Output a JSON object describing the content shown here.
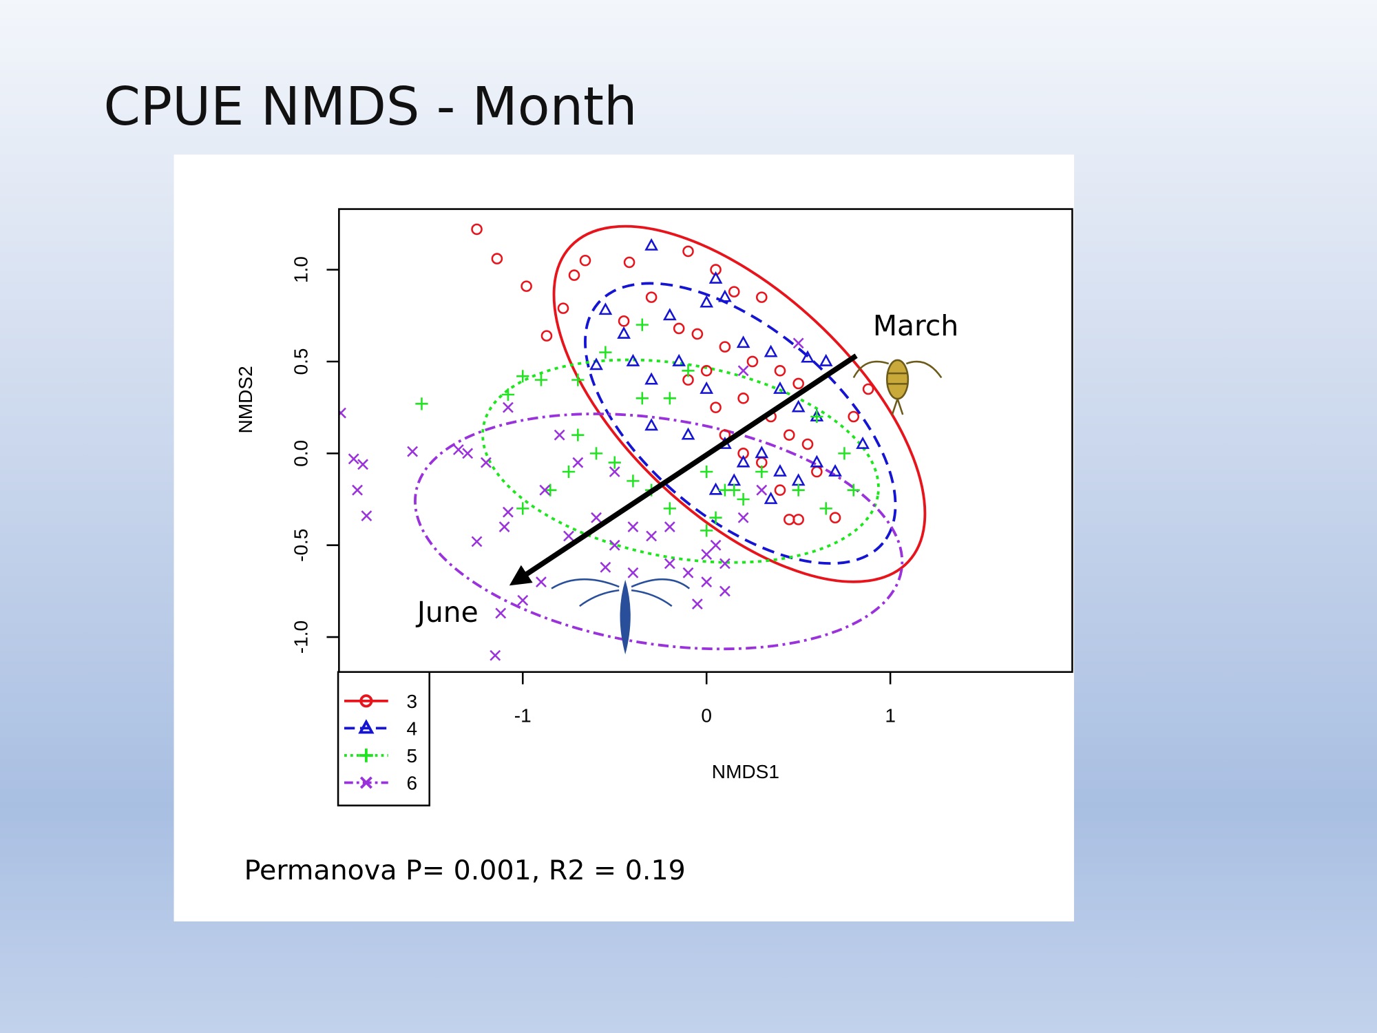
{
  "chart_data": {
    "type": "scatter",
    "title": "CPUE NMDS - Month",
    "xlabel": "NMDS1",
    "ylabel": "NMDS2",
    "annotations": [
      "March",
      "June",
      "Permanova P= 0.001, R2 = 0.19"
    ],
    "xlim": [
      -2.0,
      1.99
    ],
    "ylim": [
      -1.19,
      1.33
    ],
    "xticks": [
      -1,
      0,
      1
    ],
    "yticks": [
      {
        "value": -1,
        "label": "-1.0"
      },
      {
        "value": -0.5,
        "label": "-0.5"
      },
      {
        "value": 0,
        "label": "0.0"
      },
      {
        "value": 0.5,
        "label": "0.5"
      },
      {
        "value": 1,
        "label": "1.0"
      }
    ],
    "legend": "bottom-left",
    "series": [
      {
        "name": "3",
        "color": "#e8141c",
        "marker": "circle",
        "line_style": "solid",
        "x": [
          -1.25,
          -1.14,
          -0.98,
          -0.87,
          -0.78,
          -0.72,
          -0.66,
          -0.42,
          -0.1,
          0.05,
          0.15,
          0.3,
          -0.45,
          -0.3,
          -0.15,
          -0.05,
          0.1,
          0.25,
          0.4,
          0.5,
          0.2,
          0.35,
          0.45,
          0.55,
          0.6,
          0.4,
          0.5,
          0.45,
          0.7,
          0.88,
          0.8,
          0.1,
          0.2,
          0.3,
          0.05,
          -0.1,
          0.0
        ],
        "y": [
          1.22,
          1.06,
          0.91,
          0.64,
          0.79,
          0.97,
          1.05,
          1.04,
          1.1,
          1.0,
          0.88,
          0.85,
          0.72,
          0.85,
          0.68,
          0.65,
          0.58,
          0.5,
          0.45,
          0.38,
          0.3,
          0.2,
          0.1,
          0.05,
          -0.1,
          -0.2,
          -0.36,
          -0.36,
          -0.35,
          0.35,
          0.2,
          0.1,
          0.0,
          -0.05,
          0.25,
          0.4,
          0.45
        ]
      },
      {
        "name": "4",
        "color": "#1414d2",
        "marker": "triangle",
        "line_style": "dashed",
        "x": [
          -0.3,
          0.05,
          0.1,
          -0.55,
          -0.45,
          -0.2,
          0.0,
          -0.6,
          -0.4,
          -0.3,
          -0.15,
          0.0,
          0.2,
          0.35,
          0.55,
          0.65,
          0.4,
          0.5,
          0.6,
          0.85,
          -0.3,
          -0.1,
          0.1,
          0.2,
          0.3,
          0.4,
          0.5,
          0.6,
          0.7,
          0.15,
          0.05,
          0.35
        ],
        "y": [
          1.13,
          0.95,
          0.85,
          0.78,
          0.65,
          0.75,
          0.82,
          0.48,
          0.5,
          0.4,
          0.5,
          0.35,
          0.6,
          0.55,
          0.52,
          0.5,
          0.35,
          0.25,
          0.2,
          0.05,
          0.15,
          0.1,
          0.05,
          -0.05,
          0.0,
          -0.1,
          -0.15,
          -0.05,
          -0.1,
          -0.15,
          -0.2,
          -0.25
        ]
      },
      {
        "name": "5",
        "color": "#1ee61e",
        "marker": "plus",
        "line_style": "dotted",
        "x": [
          -1.55,
          -1.0,
          -0.9,
          -1.08,
          -0.85,
          -1.0,
          -0.75,
          -0.7,
          -0.6,
          -0.5,
          -0.4,
          -0.35,
          -0.2,
          -0.1,
          -0.35,
          -0.55,
          -0.7,
          0.0,
          0.1,
          0.05,
          0.2,
          0.3,
          0.5,
          0.65,
          0.8,
          0.75,
          0.6,
          -0.2,
          -0.3,
          0.15,
          0.0
        ],
        "y": [
          0.27,
          0.42,
          0.4,
          0.32,
          -0.2,
          -0.3,
          -0.1,
          0.1,
          0.0,
          -0.05,
          -0.15,
          0.3,
          0.3,
          0.45,
          0.7,
          0.55,
          0.4,
          -0.1,
          -0.2,
          -0.35,
          -0.25,
          -0.1,
          -0.2,
          -0.3,
          -0.2,
          0.0,
          0.2,
          -0.3,
          -0.2,
          -0.2,
          -0.42
        ]
      },
      {
        "name": "6",
        "color": "#9a32dc",
        "marker": "cross",
        "line_style": "dashdot",
        "x": [
          -1.99,
          -1.92,
          -1.87,
          -1.9,
          -1.85,
          -1.6,
          -1.3,
          -1.35,
          -1.2,
          -1.08,
          -1.25,
          -1.1,
          -1.08,
          -0.88,
          -0.75,
          -0.6,
          -0.5,
          -0.4,
          -0.3,
          -0.2,
          -0.9,
          -1.0,
          -1.15,
          -1.12,
          -0.55,
          -0.4,
          -0.2,
          -0.1,
          0.0,
          0.1,
          -0.05,
          0.1,
          0.05,
          0.2,
          0.3,
          -0.8,
          -0.7,
          -0.5,
          0.2,
          0.5,
          0.0
        ],
        "y": [
          0.22,
          -0.03,
          -0.06,
          -0.2,
          -0.34,
          0.01,
          0.0,
          0.02,
          -0.05,
          0.25,
          -0.48,
          -0.4,
          -0.32,
          -0.2,
          -0.45,
          -0.35,
          -0.5,
          -0.4,
          -0.45,
          -0.4,
          -0.7,
          -0.8,
          -1.1,
          -0.87,
          -0.62,
          -0.65,
          -0.6,
          -0.65,
          -0.7,
          -0.75,
          -0.82,
          -0.6,
          -0.5,
          -0.35,
          -0.2,
          0.1,
          -0.05,
          -0.1,
          0.45,
          0.6,
          -0.55
        ]
      }
    ]
  }
}
